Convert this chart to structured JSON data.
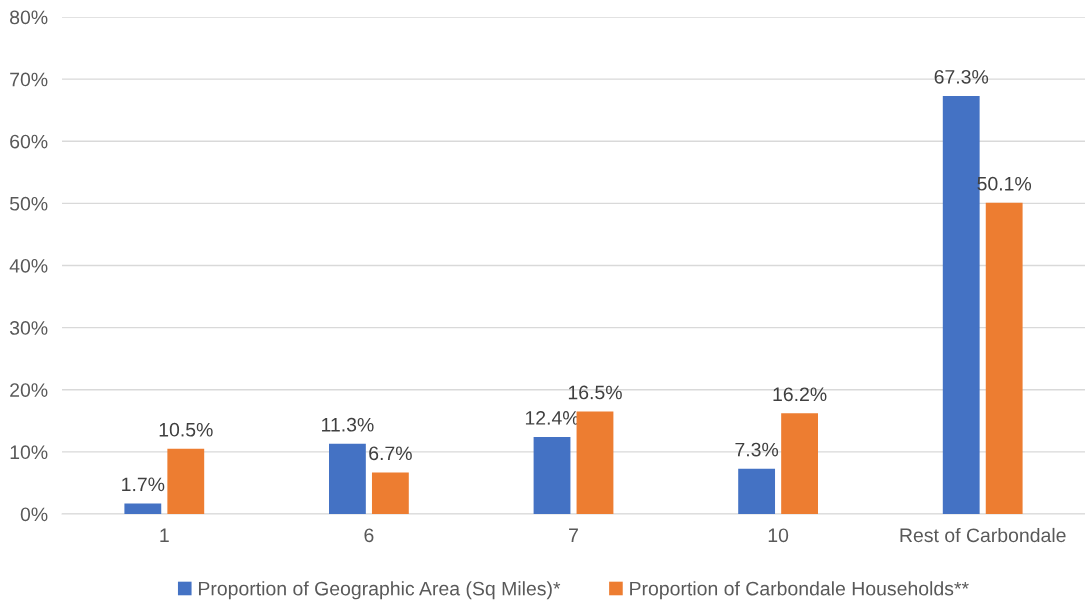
{
  "chart_data": {
    "type": "bar",
    "categories": [
      "1",
      "6",
      "7",
      "10",
      "Rest of Carbondale"
    ],
    "series": [
      {
        "name": "Proportion of Geographic Area (Sq Miles)*",
        "color": "#4472c4",
        "values": [
          1.7,
          11.3,
          12.4,
          7.3,
          67.3
        ],
        "value_labels": [
          "1.7%",
          "11.3%",
          "12.4%",
          "7.3%",
          "67.3%"
        ]
      },
      {
        "name": "Proportion of Carbondale Households**",
        "color": "#ed7d31",
        "values": [
          10.5,
          6.7,
          16.5,
          16.2,
          50.1
        ],
        "value_labels": [
          "10.5%",
          "6.7%",
          "16.5%",
          "16.2%",
          "50.1%"
        ]
      }
    ],
    "ylim": [
      0,
      80
    ],
    "yticks": [
      {
        "value": 0,
        "label": "0%"
      },
      {
        "value": 10,
        "label": "10%"
      },
      {
        "value": 20,
        "label": "20%"
      },
      {
        "value": 30,
        "label": "30%"
      },
      {
        "value": 40,
        "label": "40%"
      },
      {
        "value": 50,
        "label": "50%"
      },
      {
        "value": 60,
        "label": "60%"
      },
      {
        "value": 70,
        "label": "70%"
      },
      {
        "value": 80,
        "label": "80%"
      }
    ],
    "grid": "y",
    "legend": "bottom"
  }
}
